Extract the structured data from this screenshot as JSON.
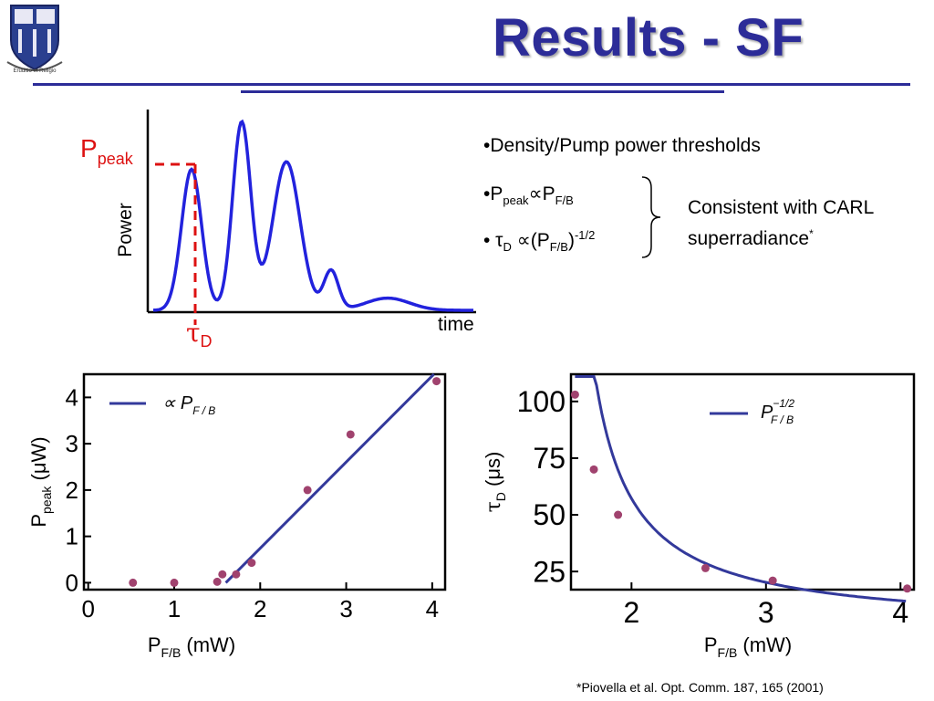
{
  "slide": {
    "title": "Results - SF",
    "logo_motto": "Eruditio et Religio"
  },
  "bullets": [
    {
      "text": "•Density/Pump power thresholds"
    },
    {
      "prefix": "•P",
      "sub1": "peak",
      "mid": "∝P",
      "sub2": "F/B"
    },
    {
      "prefix": "• τ",
      "sub1": "D",
      "mid": " ∝(P",
      "sub2": "F/B",
      "tail": ")",
      "sup": "-1/2"
    }
  ],
  "note": {
    "line1": "Consistent with CARL",
    "line2": "superradiance",
    "mark": "*"
  },
  "schematic": {
    "ylabel": "Power",
    "xlabel": "time",
    "ppeak_main": "P",
    "ppeak_sub": "peak",
    "tau_main": "τ",
    "tau_sub": "D",
    "curve_color": "#2222dd",
    "marker_color": "#dd1111"
  },
  "chart_data": [
    {
      "type": "scatter",
      "xlabel": "P_F/B (mW)",
      "ylabel": "P_peak (μW)",
      "xlim": [
        -0.05,
        4.15
      ],
      "ylim": [
        -0.15,
        4.5
      ],
      "xticks": [
        0,
        1,
        2,
        3,
        4
      ],
      "yticks": [
        0,
        1,
        2,
        3,
        4
      ],
      "legend": {
        "label": "∝ P_F/B",
        "position": "top-left"
      },
      "points": [
        {
          "x": 0.52,
          "y": 0.0
        },
        {
          "x": 1.0,
          "y": 0.0
        },
        {
          "x": 1.5,
          "y": 0.02
        },
        {
          "x": 1.56,
          "y": 0.18
        },
        {
          "x": 1.72,
          "y": 0.18
        },
        {
          "x": 1.9,
          "y": 0.43
        },
        {
          "x": 2.55,
          "y": 2.0
        },
        {
          "x": 3.05,
          "y": 3.2
        },
        {
          "x": 4.05,
          "y": 4.35
        }
      ],
      "fit": {
        "kind": "linear",
        "x_start": 1.6,
        "x_end": 4.02,
        "slope": 1.86
      },
      "line_color": "#33399b",
      "point_color": "#a0426e"
    },
    {
      "type": "scatter",
      "xlabel": "P_F/B (mW)",
      "ylabel": "τ_D (μs)",
      "xlim": [
        1.55,
        4.1
      ],
      "ylim": [
        17,
        112
      ],
      "xticks": [
        2,
        3,
        4
      ],
      "yticks": [
        25,
        50,
        75,
        100
      ],
      "legend": {
        "label": "P_F/B^-1/2",
        "position": "top-right"
      },
      "points": [
        {
          "x": 1.58,
          "y": 103
        },
        {
          "x": 1.72,
          "y": 70
        },
        {
          "x": 1.9,
          "y": 50
        },
        {
          "x": 2.55,
          "y": 26.5
        },
        {
          "x": 3.05,
          "y": 21
        },
        {
          "x": 4.05,
          "y": 17.5
        }
      ],
      "fit": {
        "kind": "power",
        "exponent": -0.5,
        "x_start": 1.58,
        "x_end": 4.05
      },
      "line_color": "#33399b",
      "point_color": "#a0426e"
    }
  ],
  "footnote": "*Piovella et al. Opt. Comm. 187, 165 (2001)"
}
